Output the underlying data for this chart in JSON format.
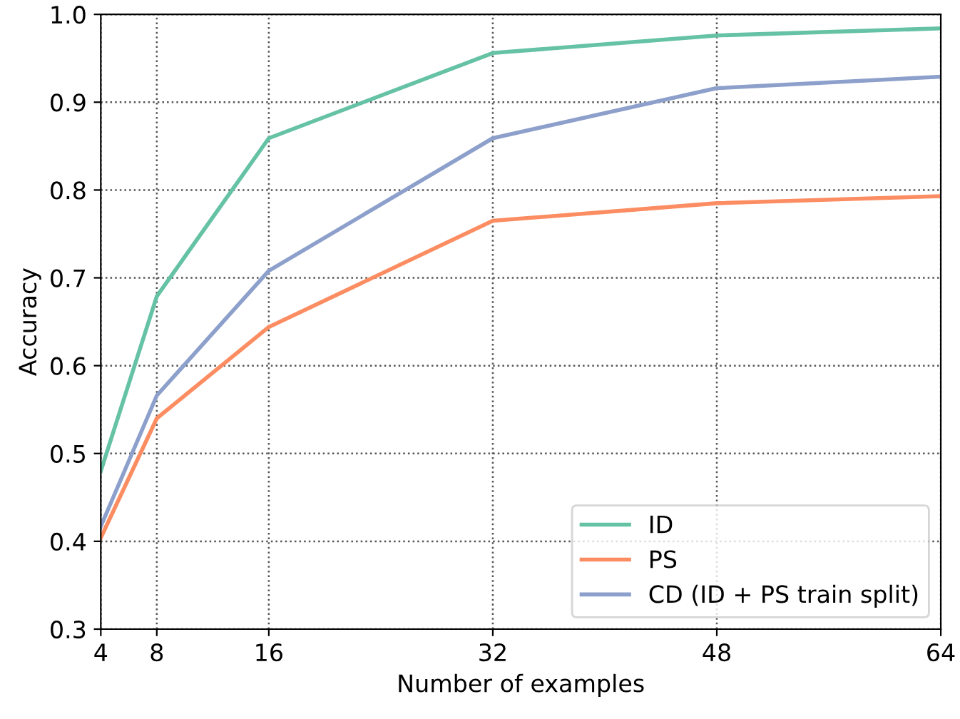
{
  "chart_data": {
    "type": "line",
    "xlabel": "Number of examples",
    "ylabel": "Accuracy",
    "x": [
      4,
      8,
      16,
      32,
      48,
      64
    ],
    "series": [
      {
        "name": "ID",
        "color": "#66c2a5",
        "values": [
          0.48,
          0.679,
          0.859,
          0.956,
          0.976,
          0.984
        ]
      },
      {
        "name": "PS",
        "color": "#fc8d62",
        "values": [
          0.404,
          0.54,
          0.644,
          0.765,
          0.785,
          0.793
        ]
      },
      {
        "name": "CD (ID + PS train split)",
        "color": "#8da0cb",
        "values": [
          0.417,
          0.566,
          0.708,
          0.859,
          0.916,
          0.929
        ]
      }
    ],
    "xlim": [
      4,
      64
    ],
    "xticks": [
      4,
      8,
      16,
      32,
      48,
      64
    ],
    "ylim": [
      0.3,
      1.0
    ],
    "yticks": [
      {
        "value": 0.3,
        "label": "0.3"
      },
      {
        "value": 0.4,
        "label": "0.4"
      },
      {
        "value": 0.5,
        "label": "0.5"
      },
      {
        "value": 0.6,
        "label": "0.6"
      },
      {
        "value": 0.7,
        "label": "0.7"
      },
      {
        "value": 0.8,
        "label": "0.8"
      },
      {
        "value": 0.9,
        "label": "0.9"
      },
      {
        "value": 1.0,
        "label": "1.0"
      }
    ],
    "grid": true,
    "legend": "lower right",
    "marker": "none",
    "line_style": "solid"
  }
}
